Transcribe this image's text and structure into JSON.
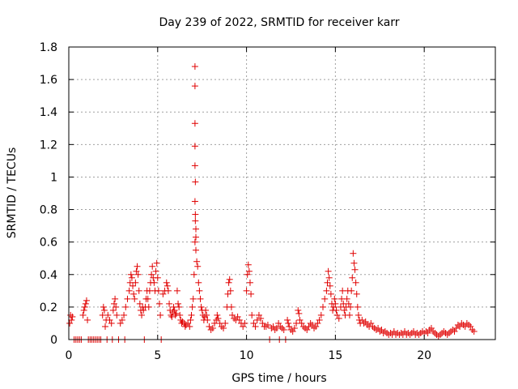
{
  "chart_data": {
    "type": "scatter",
    "title": "Day 239 of 2022, SRMTID for receiver karr",
    "xlabel": "GPS time / hours",
    "ylabel": "SRMTID / TECUs",
    "xlim": [
      0,
      24
    ],
    "ylim": [
      0,
      1.8
    ],
    "xticks": [
      0,
      5,
      10,
      15,
      20
    ],
    "xtick_labels": [
      "0",
      "5",
      "10",
      "15",
      "20"
    ],
    "yticks": [
      0,
      0.2,
      0.4,
      0.6,
      0.8,
      1,
      1.2,
      1.4,
      1.6,
      1.8
    ],
    "ytick_labels": [
      "0",
      "0.2",
      "0.4",
      "0.6",
      "0.8",
      "1",
      "1.2",
      "1.4",
      "1.6",
      "1.8"
    ],
    "grid": true,
    "marker": "+",
    "series": [
      {
        "name": "SRMTID",
        "color": "#e00000",
        "points": [
          [
            0.05,
            0.1
          ],
          [
            0.1,
            0.15
          ],
          [
            0.15,
            0.12
          ],
          [
            0.2,
            0.14
          ],
          [
            0.3,
            0.0
          ],
          [
            0.4,
            0.0
          ],
          [
            0.5,
            0.0
          ],
          [
            0.6,
            0.0
          ],
          [
            0.7,
            0.0
          ],
          [
            0.8,
            0.15
          ],
          [
            0.85,
            0.18
          ],
          [
            0.9,
            0.2
          ],
          [
            0.95,
            0.22
          ],
          [
            1.0,
            0.24
          ],
          [
            1.05,
            0.12
          ],
          [
            1.1,
            0.0
          ],
          [
            1.2,
            0.0
          ],
          [
            1.3,
            0.0
          ],
          [
            1.4,
            0.0
          ],
          [
            1.5,
            0.0
          ],
          [
            1.6,
            0.0
          ],
          [
            1.7,
            0.0
          ],
          [
            1.8,
            0.0
          ],
          [
            1.9,
            0.15
          ],
          [
            1.95,
            0.2
          ],
          [
            2.0,
            0.18
          ],
          [
            2.05,
            0.08
          ],
          [
            2.1,
            0.12
          ],
          [
            2.15,
            0.0
          ],
          [
            2.2,
            0.15
          ],
          [
            2.3,
            0.12
          ],
          [
            2.4,
            0.1
          ],
          [
            2.45,
            0.0
          ],
          [
            2.5,
            0.18
          ],
          [
            2.55,
            0.22
          ],
          [
            2.6,
            0.25
          ],
          [
            2.65,
            0.2
          ],
          [
            2.7,
            0.15
          ],
          [
            2.8,
            0.0
          ],
          [
            2.9,
            0.1
          ],
          [
            3.0,
            0.12
          ],
          [
            3.1,
            0.15
          ],
          [
            3.15,
            0.0
          ],
          [
            3.2,
            0.2
          ],
          [
            3.3,
            0.25
          ],
          [
            3.4,
            0.3
          ],
          [
            3.45,
            0.35
          ],
          [
            3.5,
            0.4
          ],
          [
            3.55,
            0.38
          ],
          [
            3.6,
            0.33
          ],
          [
            3.65,
            0.28
          ],
          [
            3.7,
            0.25
          ],
          [
            3.75,
            0.35
          ],
          [
            3.8,
            0.42
          ],
          [
            3.85,
            0.45
          ],
          [
            3.9,
            0.4
          ],
          [
            3.95,
            0.3
          ],
          [
            4.0,
            0.22
          ],
          [
            4.05,
            0.18
          ],
          [
            4.1,
            0.15
          ],
          [
            4.15,
            0.2
          ],
          [
            4.2,
            0.18
          ],
          [
            4.25,
            0.0
          ],
          [
            4.3,
            0.2
          ],
          [
            4.35,
            0.25
          ],
          [
            4.4,
            0.3
          ],
          [
            4.45,
            0.25
          ],
          [
            4.5,
            0.2
          ],
          [
            4.55,
            0.3
          ],
          [
            4.6,
            0.35
          ],
          [
            4.65,
            0.4
          ],
          [
            4.7,
            0.45
          ],
          [
            4.75,
            0.38
          ],
          [
            4.8,
            0.35
          ],
          [
            4.85,
            0.3
          ],
          [
            4.9,
            0.42
          ],
          [
            4.95,
            0.47
          ],
          [
            5.0,
            0.38
          ],
          [
            5.05,
            0.3
          ],
          [
            5.1,
            0.22
          ],
          [
            5.15,
            0.15
          ],
          [
            5.2,
            0.0
          ],
          [
            5.3,
            0.28
          ],
          [
            5.4,
            0.3
          ],
          [
            5.5,
            0.35
          ],
          [
            5.55,
            0.33
          ],
          [
            5.6,
            0.3
          ],
          [
            5.65,
            0.22
          ],
          [
            5.7,
            0.18
          ],
          [
            5.75,
            0.15
          ],
          [
            5.8,
            0.14
          ],
          [
            5.85,
            0.17
          ],
          [
            5.9,
            0.2
          ],
          [
            5.95,
            0.18
          ],
          [
            6.0,
            0.15
          ],
          [
            6.05,
            0.16
          ],
          [
            6.1,
            0.3
          ],
          [
            6.15,
            0.22
          ],
          [
            6.2,
            0.2
          ],
          [
            6.25,
            0.15
          ],
          [
            6.3,
            0.12
          ],
          [
            6.35,
            0.1
          ],
          [
            6.4,
            0.11
          ],
          [
            6.5,
            0.1
          ],
          [
            6.55,
            0.08
          ],
          [
            6.6,
            0.09
          ],
          [
            6.7,
            0.1
          ],
          [
            6.8,
            0.08
          ],
          [
            6.85,
            0.12
          ],
          [
            6.9,
            0.15
          ],
          [
            6.95,
            0.2
          ],
          [
            7.0,
            0.25
          ],
          [
            7.05,
            0.4
          ],
          [
            7.1,
            0.6
          ],
          [
            7.1,
            0.85
          ],
          [
            7.1,
            1.07
          ],
          [
            7.1,
            1.19
          ],
          [
            7.1,
            1.33
          ],
          [
            7.1,
            1.56
          ],
          [
            7.1,
            1.68
          ],
          [
            7.12,
            0.97
          ],
          [
            7.12,
            0.77
          ],
          [
            7.12,
            0.73
          ],
          [
            7.15,
            0.68
          ],
          [
            7.15,
            0.63
          ],
          [
            7.15,
            0.55
          ],
          [
            7.2,
            0.48
          ],
          [
            7.25,
            0.45
          ],
          [
            7.3,
            0.35
          ],
          [
            7.35,
            0.3
          ],
          [
            7.4,
            0.25
          ],
          [
            7.45,
            0.2
          ],
          [
            7.5,
            0.18
          ],
          [
            7.55,
            0.15
          ],
          [
            7.6,
            0.12
          ],
          [
            7.65,
            0.14
          ],
          [
            7.7,
            0.18
          ],
          [
            7.75,
            0.15
          ],
          [
            7.8,
            0.12
          ],
          [
            7.9,
            0.08
          ],
          [
            8.0,
            0.06
          ],
          [
            8.1,
            0.07
          ],
          [
            8.2,
            0.1
          ],
          [
            8.3,
            0.12
          ],
          [
            8.35,
            0.15
          ],
          [
            8.4,
            0.13
          ],
          [
            8.5,
            0.1
          ],
          [
            8.6,
            0.08
          ],
          [
            8.7,
            0.07
          ],
          [
            8.8,
            0.1
          ],
          [
            8.9,
            0.2
          ],
          [
            8.95,
            0.28
          ],
          [
            9.0,
            0.35
          ],
          [
            9.05,
            0.37
          ],
          [
            9.1,
            0.3
          ],
          [
            9.15,
            0.2
          ],
          [
            9.2,
            0.15
          ],
          [
            9.3,
            0.13
          ],
          [
            9.4,
            0.12
          ],
          [
            9.5,
            0.14
          ],
          [
            9.6,
            0.12
          ],
          [
            9.7,
            0.1
          ],
          [
            9.8,
            0.08
          ],
          [
            9.9,
            0.1
          ],
          [
            10.0,
            0.3
          ],
          [
            10.05,
            0.4
          ],
          [
            10.1,
            0.46
          ],
          [
            10.15,
            0.42
          ],
          [
            10.2,
            0.35
          ],
          [
            10.25,
            0.28
          ],
          [
            10.3,
            0.15
          ],
          [
            10.4,
            0.1
          ],
          [
            10.5,
            0.08
          ],
          [
            10.6,
            0.12
          ],
          [
            10.7,
            0.15
          ],
          [
            10.8,
            0.13
          ],
          [
            10.9,
            0.1
          ],
          [
            11.0,
            0.08
          ],
          [
            11.1,
            0.08
          ],
          [
            11.2,
            0.09
          ],
          [
            11.3,
            0.0
          ],
          [
            11.4,
            0.07
          ],
          [
            11.5,
            0.08
          ],
          [
            11.6,
            0.06
          ],
          [
            11.7,
            0.07
          ],
          [
            11.8,
            0.1
          ],
          [
            11.85,
            0.0
          ],
          [
            11.9,
            0.08
          ],
          [
            12.0,
            0.07
          ],
          [
            12.1,
            0.06
          ],
          [
            12.2,
            0.0
          ],
          [
            12.3,
            0.12
          ],
          [
            12.35,
            0.1
          ],
          [
            12.4,
            0.08
          ],
          [
            12.5,
            0.06
          ],
          [
            12.6,
            0.05
          ],
          [
            12.7,
            0.07
          ],
          [
            12.8,
            0.1
          ],
          [
            12.9,
            0.18
          ],
          [
            12.95,
            0.16
          ],
          [
            13.0,
            0.12
          ],
          [
            13.1,
            0.1
          ],
          [
            13.2,
            0.08
          ],
          [
            13.3,
            0.07
          ],
          [
            13.4,
            0.06
          ],
          [
            13.5,
            0.08
          ],
          [
            13.6,
            0.1
          ],
          [
            13.7,
            0.09
          ],
          [
            13.8,
            0.07
          ],
          [
            13.9,
            0.08
          ],
          [
            14.0,
            0.1
          ],
          [
            14.1,
            0.12
          ],
          [
            14.2,
            0.15
          ],
          [
            14.3,
            0.2
          ],
          [
            14.4,
            0.25
          ],
          [
            14.5,
            0.3
          ],
          [
            14.55,
            0.35
          ],
          [
            14.6,
            0.42
          ],
          [
            14.65,
            0.38
          ],
          [
            14.7,
            0.33
          ],
          [
            14.75,
            0.28
          ],
          [
            14.8,
            0.22
          ],
          [
            14.85,
            0.18
          ],
          [
            14.9,
            0.2
          ],
          [
            14.95,
            0.25
          ],
          [
            15.0,
            0.22
          ],
          [
            15.05,
            0.18
          ],
          [
            15.1,
            0.15
          ],
          [
            15.2,
            0.13
          ],
          [
            15.3,
            0.2
          ],
          [
            15.35,
            0.25
          ],
          [
            15.4,
            0.3
          ],
          [
            15.45,
            0.22
          ],
          [
            15.5,
            0.18
          ],
          [
            15.55,
            0.15
          ],
          [
            15.6,
            0.2
          ],
          [
            15.65,
            0.25
          ],
          [
            15.7,
            0.3
          ],
          [
            15.75,
            0.22
          ],
          [
            15.8,
            0.15
          ],
          [
            15.85,
            0.2
          ],
          [
            15.9,
            0.3
          ],
          [
            15.95,
            0.38
          ],
          [
            16.0,
            0.53
          ],
          [
            16.05,
            0.47
          ],
          [
            16.1,
            0.43
          ],
          [
            16.15,
            0.35
          ],
          [
            16.2,
            0.28
          ],
          [
            16.25,
            0.2
          ],
          [
            16.3,
            0.15
          ],
          [
            16.35,
            0.12
          ],
          [
            16.4,
            0.1
          ],
          [
            16.5,
            0.12
          ],
          [
            16.6,
            0.1
          ],
          [
            16.7,
            0.11
          ],
          [
            16.8,
            0.09
          ],
          [
            16.9,
            0.08
          ],
          [
            17.0,
            0.1
          ],
          [
            17.1,
            0.08
          ],
          [
            17.2,
            0.07
          ],
          [
            17.3,
            0.06
          ],
          [
            17.4,
            0.07
          ],
          [
            17.5,
            0.05
          ],
          [
            17.6,
            0.06
          ],
          [
            17.7,
            0.04
          ],
          [
            17.8,
            0.05
          ],
          [
            17.9,
            0.04
          ],
          [
            18.0,
            0.03
          ],
          [
            18.1,
            0.04
          ],
          [
            18.2,
            0.03
          ],
          [
            18.3,
            0.05
          ],
          [
            18.4,
            0.03
          ],
          [
            18.5,
            0.04
          ],
          [
            18.6,
            0.03
          ],
          [
            18.7,
            0.04
          ],
          [
            18.8,
            0.03
          ],
          [
            18.9,
            0.05
          ],
          [
            19.0,
            0.03
          ],
          [
            19.1,
            0.04
          ],
          [
            19.2,
            0.03
          ],
          [
            19.3,
            0.04
          ],
          [
            19.4,
            0.05
          ],
          [
            19.5,
            0.03
          ],
          [
            19.6,
            0.04
          ],
          [
            19.7,
            0.03
          ],
          [
            19.8,
            0.04
          ],
          [
            19.9,
            0.05
          ],
          [
            20.0,
            0.04
          ],
          [
            20.1,
            0.05
          ],
          [
            20.2,
            0.04
          ],
          [
            20.3,
            0.06
          ],
          [
            20.4,
            0.07
          ],
          [
            20.5,
            0.05
          ],
          [
            20.6,
            0.04
          ],
          [
            20.7,
            0.03
          ],
          [
            20.8,
            0.02
          ],
          [
            20.9,
            0.03
          ],
          [
            21.0,
            0.04
          ],
          [
            21.1,
            0.05
          ],
          [
            21.2,
            0.04
          ],
          [
            21.3,
            0.03
          ],
          [
            21.4,
            0.04
          ],
          [
            21.5,
            0.05
          ],
          [
            21.6,
            0.06
          ],
          [
            21.7,
            0.05
          ],
          [
            21.8,
            0.07
          ],
          [
            21.9,
            0.09
          ],
          [
            22.0,
            0.08
          ],
          [
            22.1,
            0.1
          ],
          [
            22.2,
            0.09
          ],
          [
            22.3,
            0.08
          ],
          [
            22.4,
            0.1
          ],
          [
            22.5,
            0.09
          ],
          [
            22.6,
            0.08
          ],
          [
            22.7,
            0.06
          ],
          [
            22.8,
            0.05
          ]
        ]
      }
    ]
  }
}
